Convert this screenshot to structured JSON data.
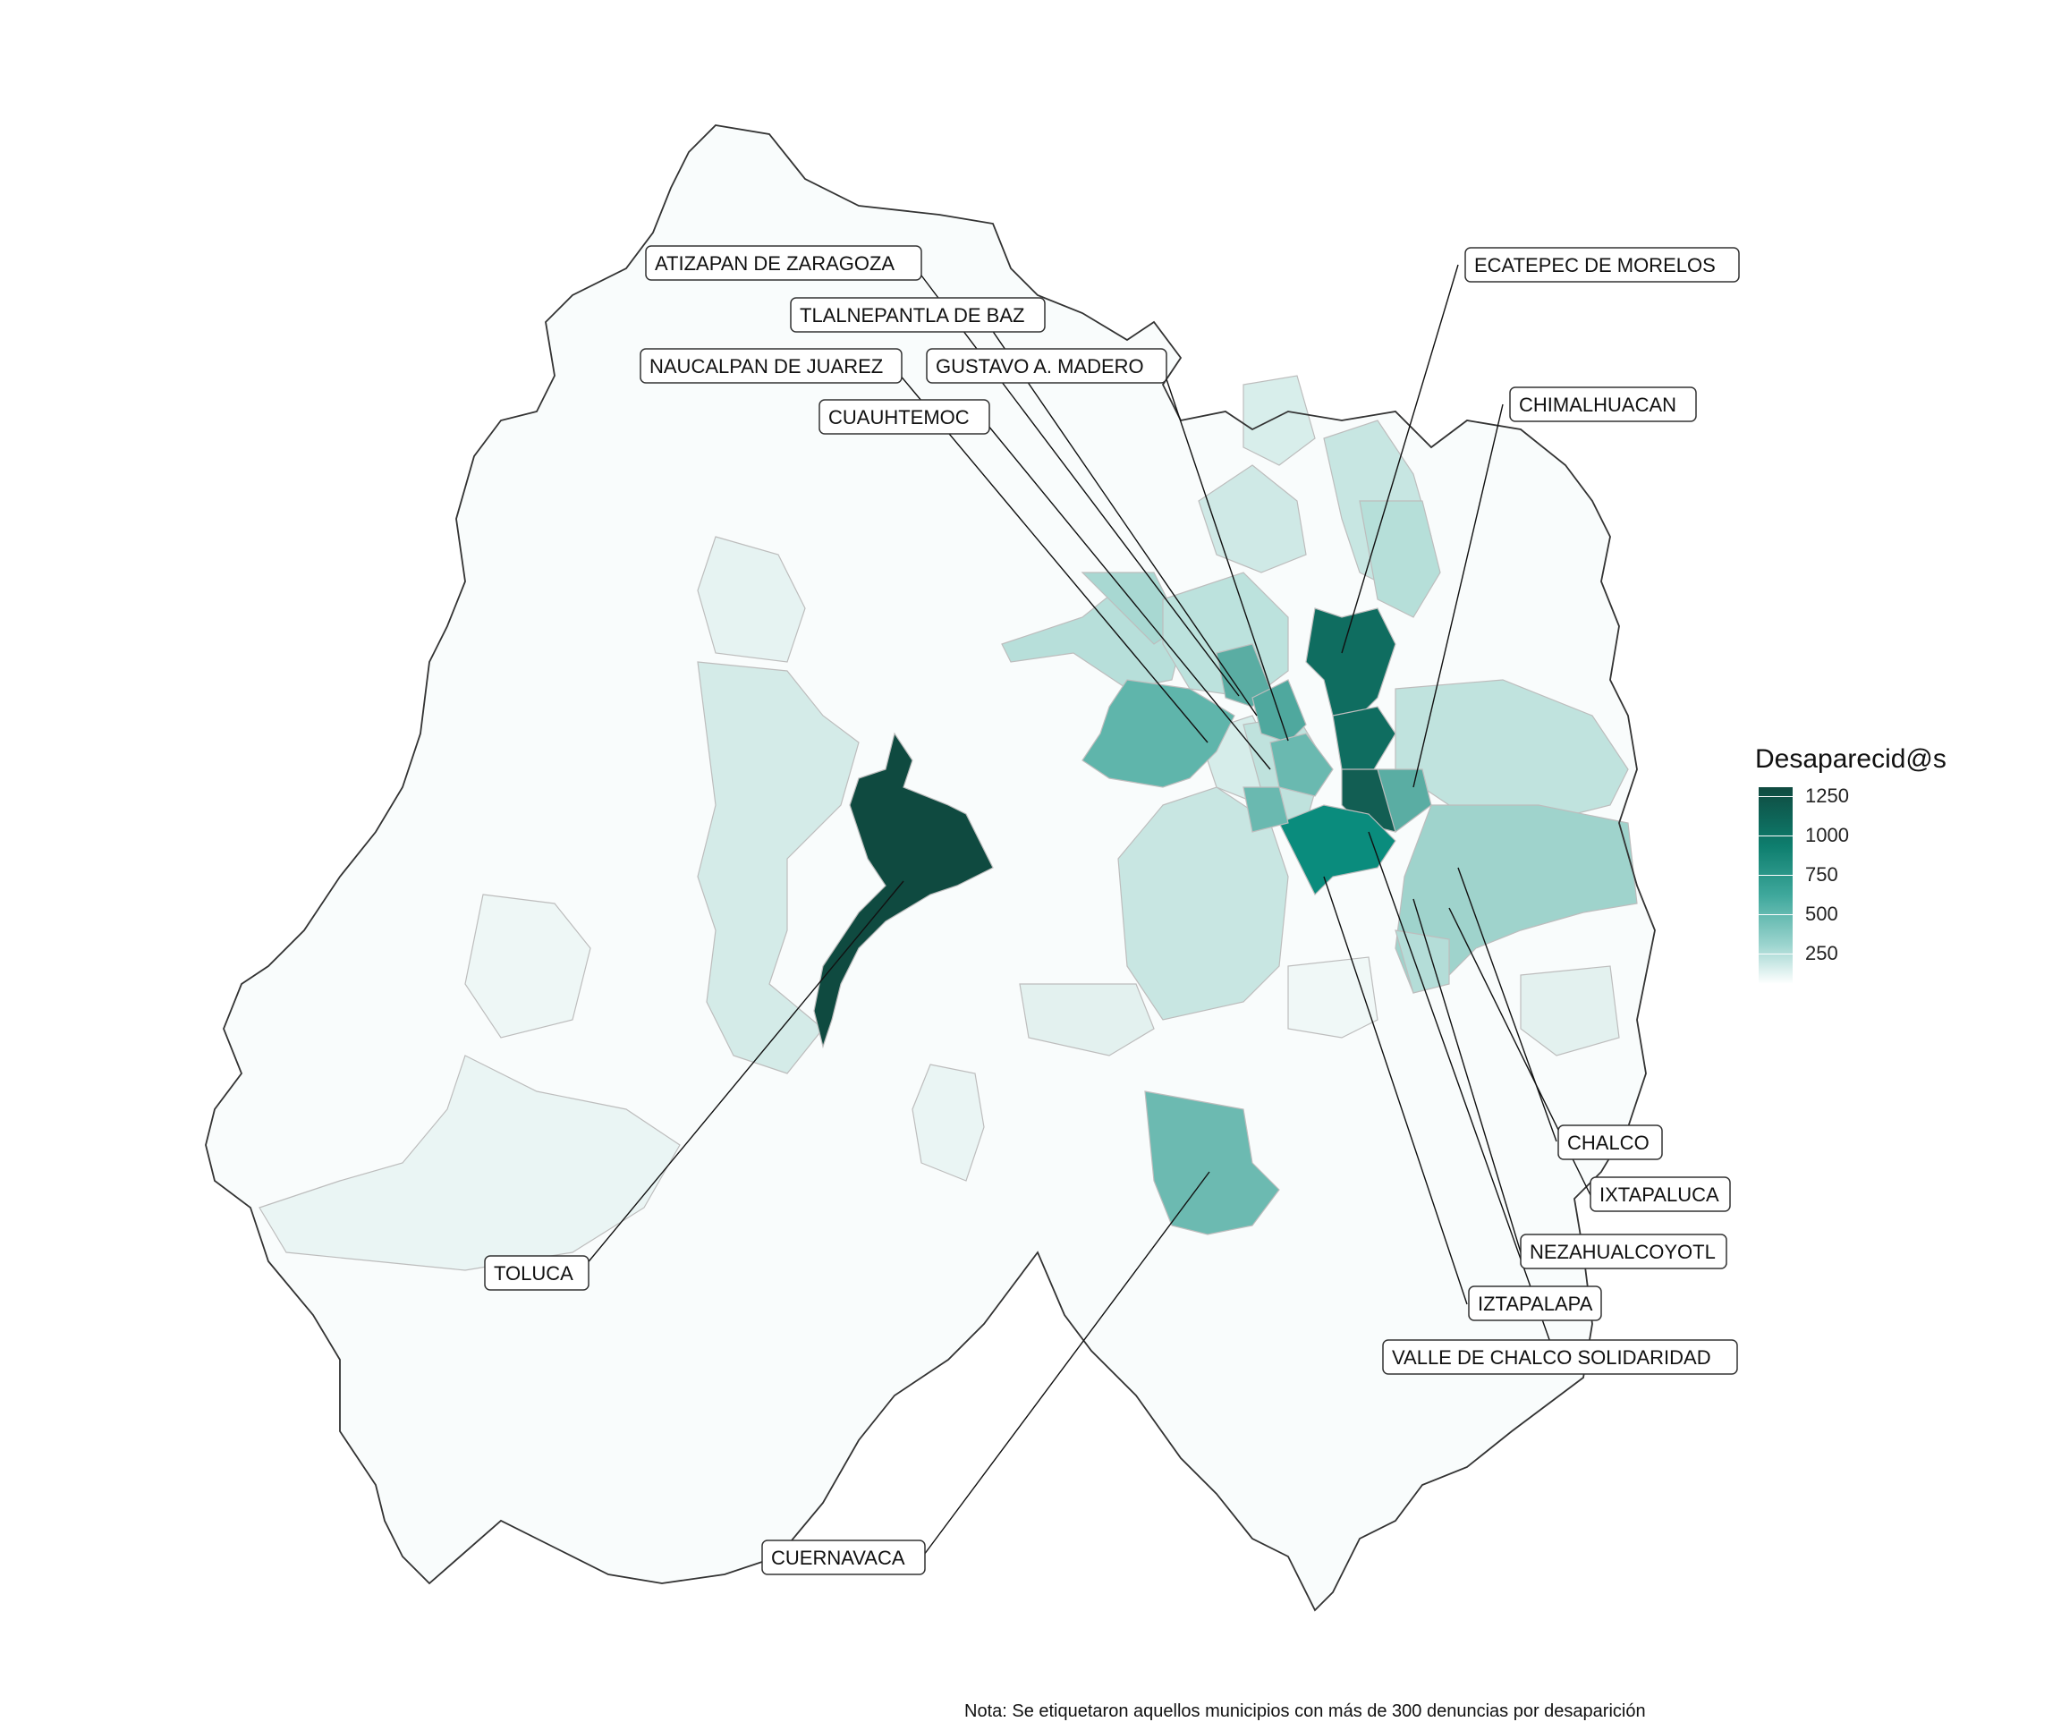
{
  "map": {
    "legend": {
      "title": "Desaparecid@s",
      "ticks": [
        "1250",
        "1000",
        "750",
        "500",
        "250"
      ],
      "colors": {
        "high": "#0f4a40",
        "mid": "#0e7e6e",
        "low": "#9bd4ce",
        "none": "#ffffff"
      }
    },
    "note": "Nota: Se etiquetaron aquellos municipios con más de 300 denuncias por desaparición",
    "labels": [
      {
        "name": "ATIZAPAN DE ZARAGOZA"
      },
      {
        "name": "TLALNEPANTLA DE BAZ"
      },
      {
        "name": "NAUCALPAN DE JUAREZ"
      },
      {
        "name": "GUSTAVO A. MADERO"
      },
      {
        "name": "CUAUHTEMOC"
      },
      {
        "name": "ECATEPEC DE MORELOS"
      },
      {
        "name": "CHIMALHUACAN"
      },
      {
        "name": "TOLUCA"
      },
      {
        "name": "CHALCO"
      },
      {
        "name": "IXTAPALUCA"
      },
      {
        "name": "NEZAHUALCOYOTL"
      },
      {
        "name": "IZTAPALAPA"
      },
      {
        "name": "VALLE DE CHALCO SOLIDARIDAD"
      },
      {
        "name": "CUERNAVACA"
      }
    ]
  }
}
